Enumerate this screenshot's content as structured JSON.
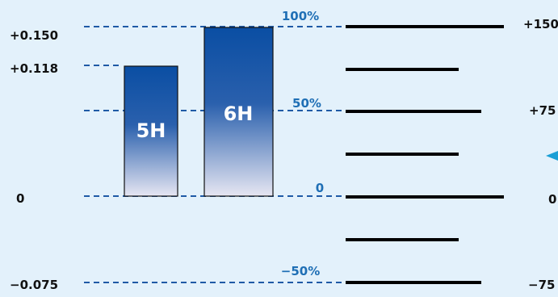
{
  "left_labels": {
    "top": "+0.150",
    "upper": "+0.118",
    "zero": "0",
    "bottom": "−0.075"
  },
  "percent_labels": {
    "p100": "100%",
    "p50": "50%",
    "p0": "0",
    "m50": "−50%"
  },
  "right_labels": {
    "top": "+150",
    "mid": "+75",
    "zero": "0",
    "bottom": "−75"
  },
  "bars": [
    {
      "label": "5H",
      "value": 0.118
    },
    {
      "label": "6H",
      "value": 0.15
    }
  ],
  "colors": {
    "background": "#e3f1fb",
    "dashed_line": "#1f5aa6",
    "percent_text": "#1f6fb5",
    "bar_top": "#0a4ea3",
    "bar_bottom": "#e6e6f2",
    "arrow": "#1a9fd6",
    "scale_line": "#000000"
  }
}
